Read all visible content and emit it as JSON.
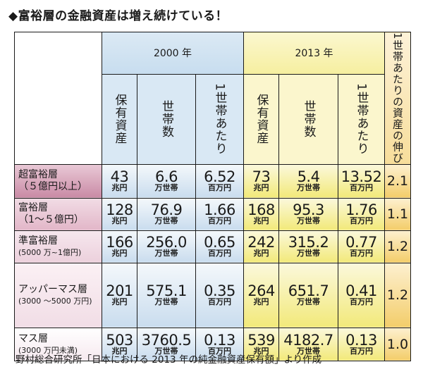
{
  "title": "◆富裕層の金融資産は増え続けている！",
  "source": "野村総合研究所「日本における 2013 年の純金融資産保有額」より作成",
  "headers": {
    "year_a": "2000 年",
    "year_b": "2013 年",
    "growth": "1世帯あたりの資産の伸び",
    "col_assets": "保有資産",
    "col_households": "世帯数",
    "col_per": "1世帯あたり"
  },
  "rows": [
    {
      "name1": "超富裕層",
      "name2": "（５億円以上）",
      "a_assets": "43",
      "a_assets_u": "兆円",
      "a_hh": "6.6",
      "a_hh_u": "万世帯",
      "a_per": "6.52",
      "a_per_u": "百万円",
      "b_assets": "73",
      "b_assets_u": "兆円",
      "b_hh": "5.4",
      "b_hh_u": "万世帯",
      "b_per": "13.52",
      "b_per_u": "百万円",
      "growth": "2.1"
    },
    {
      "name1": "富裕層",
      "name2": "（1～５億円）",
      "a_assets": "128",
      "a_assets_u": "兆円",
      "a_hh": "76.9",
      "a_hh_u": "万世帯",
      "a_per": "1.66",
      "a_per_u": "百万円",
      "b_assets": "168",
      "b_assets_u": "兆円",
      "b_hh": "95.3",
      "b_hh_u": "万世帯",
      "b_per": "1.76",
      "b_per_u": "百万円",
      "growth": "1.1"
    },
    {
      "name1": "準富裕層",
      "name2": "(5000 万~1億円)",
      "a_assets": "166",
      "a_assets_u": "兆円",
      "a_hh": "256.0",
      "a_hh_u": "万世帯",
      "a_per": "0.65",
      "a_per_u": "百万円",
      "b_assets": "242",
      "b_assets_u": "兆円",
      "b_hh": "315.2",
      "b_hh_u": "万世帯",
      "b_per": "0.77",
      "b_per_u": "百万円",
      "growth": "1.2"
    },
    {
      "name1": "アッパーマス層",
      "name2": "(3000 ～5000 万円)",
      "a_assets": "201",
      "a_assets_u": "兆円",
      "a_hh": "575.1",
      "a_hh_u": "万世帯",
      "a_per": "0.35",
      "a_per_u": "百万円",
      "b_assets": "264",
      "b_assets_u": "兆円",
      "b_hh": "651.7",
      "b_hh_u": "万世帯",
      "b_per": "0.41",
      "b_per_u": "百万円",
      "growth": "1.2"
    },
    {
      "name1": "マス層",
      "name2": "(3000 万円未満)",
      "a_assets": "503",
      "a_assets_u": "兆円",
      "a_hh": "3760.5",
      "a_hh_u": "万世帯",
      "a_per": "0.13",
      "a_per_u": "百万円",
      "b_assets": "539",
      "b_assets_u": "兆円",
      "b_hh": "4182.7",
      "b_hh_u": "万世帯",
      "b_per": "0.13",
      "b_per_u": "百万円",
      "growth": "1.0"
    }
  ]
}
